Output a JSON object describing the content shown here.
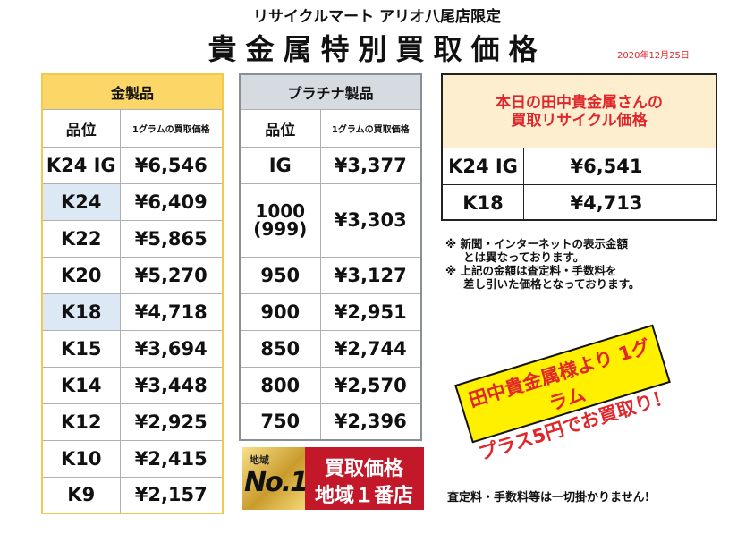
{
  "header": {
    "store": "リサイクルマート アリオ八尾店限定",
    "title": "貴金属特別買取価格",
    "date": "2020年12月25日"
  },
  "gold": {
    "caption": "金製品",
    "col_grade": "品位",
    "col_price": "1グラムの買取価格",
    "rows": [
      {
        "grade": "K24 IG",
        "price": "¥6,546"
      },
      {
        "grade": "K24",
        "price": "¥6,409"
      },
      {
        "grade": "K22",
        "price": "¥5,865"
      },
      {
        "grade": "K20",
        "price": "¥5,270"
      },
      {
        "grade": "K18",
        "price": "¥4,718"
      },
      {
        "grade": "K15",
        "price": "¥3,694"
      },
      {
        "grade": "K14",
        "price": "¥3,448"
      },
      {
        "grade": "K12",
        "price": "¥2,925"
      },
      {
        "grade": "K10",
        "price": "¥2,415"
      },
      {
        "grade": "K9",
        "price": "¥2,157"
      }
    ]
  },
  "platinum": {
    "caption": "プラチナ製品",
    "col_grade": "品位",
    "col_price": "1グラムの買取価格",
    "rows": [
      {
        "grade": "IG",
        "price": "¥3,377"
      },
      {
        "grade": "1000",
        "grade2": "(999)",
        "price": "¥3,303"
      },
      {
        "grade": "950",
        "price": "¥3,127"
      },
      {
        "grade": "900",
        "price": "¥2,951"
      },
      {
        "grade": "850",
        "price": "¥2,744"
      },
      {
        "grade": "800",
        "price": "¥2,570"
      },
      {
        "grade": "750",
        "price": "¥2,396"
      }
    ]
  },
  "today": {
    "line1": "本日の田中貴金属さんの",
    "line2": "買取リサイクル価格",
    "rows": [
      {
        "grade": "K24 IG",
        "price": "¥6,541"
      },
      {
        "grade": "K18",
        "price": "¥4,713"
      }
    ]
  },
  "notes": [
    "※ 新聞・インターネットの表示金額",
    "とは異なっております。",
    "※ 上記の金額は査定料・手数料を",
    "差し引いた価格となっております。"
  ],
  "promo": {
    "line1": "田中貴金属様より 1グラム",
    "line2": "プラス5円でお買取り！"
  },
  "badge": {
    "area": "地域",
    "no1": "No.1",
    "line1": "買取価格",
    "line2": "地域１番店"
  },
  "footer": "査定料・手数料等は一切掛かりません!",
  "colors": {
    "accent_red": "#e0262b",
    "gold_header": "#fcd666",
    "platinum_header": "#d6dbe1",
    "promo_yellow": "#fff000"
  }
}
